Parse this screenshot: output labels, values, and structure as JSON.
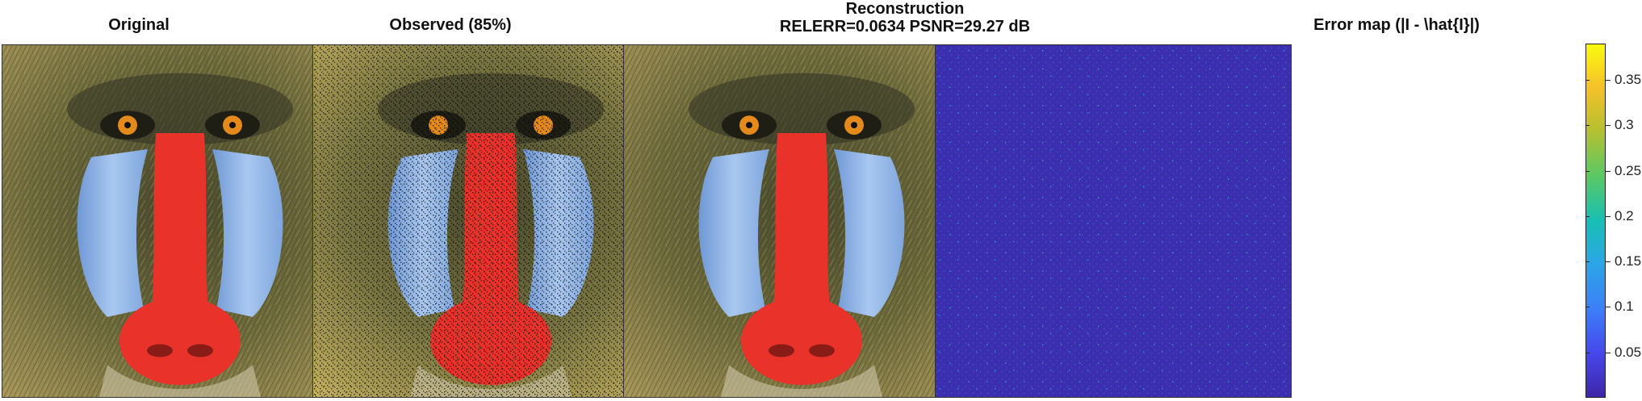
{
  "panels": [
    {
      "title": "Original"
    },
    {
      "title": "Observed (85%)"
    },
    {
      "title_line1": "Reconstruction",
      "title_line2": "RELERR=0.0634  PSNR=29.27 dB"
    },
    {
      "title": "Error map (|I - \\hat{I}|)"
    }
  ],
  "colorbar": {
    "colormap": "parula",
    "range": [
      0,
      0.39
    ],
    "ticks": [
      {
        "value": 0.35,
        "label": "0.35"
      },
      {
        "value": 0.3,
        "label": "0.3"
      },
      {
        "value": 0.25,
        "label": "0.25"
      },
      {
        "value": 0.2,
        "label": "0.2"
      },
      {
        "value": 0.15,
        "label": "0.15"
      },
      {
        "value": 0.1,
        "label": "0.1"
      },
      {
        "value": 0.05,
        "label": "0.05"
      }
    ]
  },
  "colors": {
    "fur_dark": "#3b3f2a",
    "fur_mid": "#7d7a44",
    "fur_light": "#c9b46a",
    "cheek_blue": "#8fb6e6",
    "nose_red": "#e8322a",
    "eye_orange": "#e48a1c",
    "error_bg": "#3b2fb0"
  }
}
